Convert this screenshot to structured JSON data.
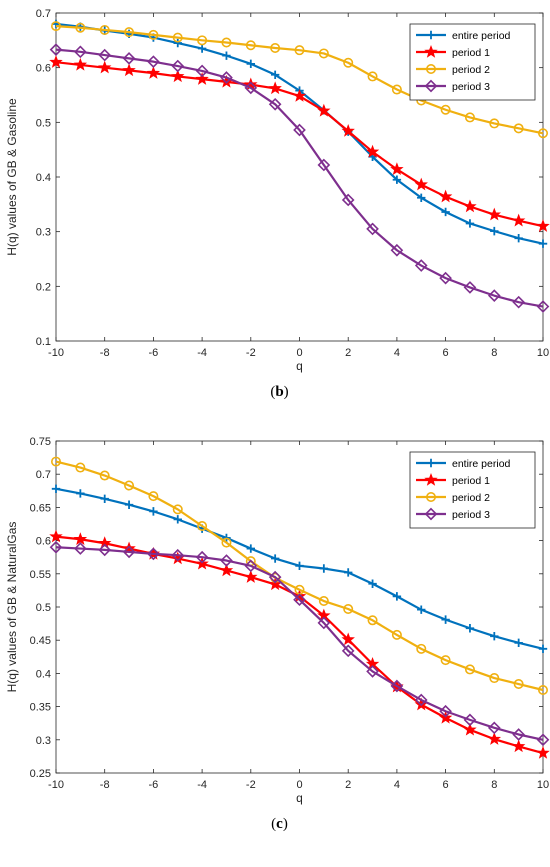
{
  "chart_data": [
    {
      "type": "line",
      "caption_open": "(",
      "caption": "b",
      "caption_close": ")",
      "xlabel": "q",
      "ylabel": "H(q) values of GB & Gasoline",
      "xlim": [
        -10,
        10
      ],
      "ylim": [
        0.1,
        0.7
      ],
      "xticks": [
        "-10",
        "-8",
        "-6",
        "-4",
        "-2",
        "0",
        "2",
        "4",
        "6",
        "8",
        "10"
      ],
      "yticks": [
        "0.1",
        "0.2",
        "0.3",
        "0.4",
        "0.5",
        "0.6",
        "0.7"
      ],
      "grid": false,
      "legend_position": "top-right",
      "x": [
        -10,
        -9,
        -8,
        -7,
        -6,
        -5,
        -4,
        -3,
        -2,
        -1,
        0,
        1,
        2,
        3,
        4,
        5,
        6,
        7,
        8,
        9,
        10
      ],
      "series": [
        {
          "name": "entire period",
          "color": "#0072BD",
          "marker": "plus",
          "values": [
            0.68,
            0.675,
            0.668,
            0.662,
            0.655,
            0.645,
            0.635,
            0.622,
            0.607,
            0.587,
            0.558,
            0.522,
            0.483,
            0.437,
            0.395,
            0.362,
            0.336,
            0.315,
            0.301,
            0.288,
            0.278
          ]
        },
        {
          "name": "period 1",
          "color": "#FF0000",
          "marker": "star",
          "values": [
            0.61,
            0.605,
            0.6,
            0.595,
            0.59,
            0.584,
            0.579,
            0.574,
            0.569,
            0.562,
            0.548,
            0.521,
            0.484,
            0.446,
            0.414,
            0.386,
            0.364,
            0.346,
            0.331,
            0.32,
            0.31
          ]
        },
        {
          "name": "period 2",
          "color": "#F0B010",
          "marker": "circle",
          "values": [
            0.676,
            0.673,
            0.669,
            0.665,
            0.66,
            0.655,
            0.65,
            0.646,
            0.641,
            0.636,
            0.632,
            0.626,
            0.609,
            0.584,
            0.56,
            0.54,
            0.523,
            0.509,
            0.498,
            0.489,
            0.48
          ]
        },
        {
          "name": "period 3",
          "color": "#7E2F8E",
          "marker": "diamond",
          "values": [
            0.633,
            0.629,
            0.623,
            0.617,
            0.611,
            0.603,
            0.594,
            0.582,
            0.563,
            0.533,
            0.486,
            0.422,
            0.358,
            0.305,
            0.266,
            0.238,
            0.215,
            0.198,
            0.183,
            0.171,
            0.163
          ]
        }
      ]
    },
    {
      "type": "line",
      "caption_open": "(",
      "caption": "c",
      "caption_close": ")",
      "xlabel": "q",
      "ylabel": "H(q) values of GB & NaturalGas",
      "xlim": [
        -10,
        10
      ],
      "ylim": [
        0.25,
        0.75
      ],
      "xticks": [
        "-10",
        "-8",
        "-6",
        "-4",
        "-2",
        "0",
        "2",
        "4",
        "6",
        "8",
        "10"
      ],
      "yticks": [
        "0.25",
        "0.3",
        "0.35",
        "0.4",
        "0.45",
        "0.5",
        "0.55",
        "0.6",
        "0.65",
        "0.7",
        "0.75"
      ],
      "grid": false,
      "legend_position": "top-right",
      "x": [
        -10,
        -9,
        -8,
        -7,
        -6,
        -5,
        -4,
        -3,
        -2,
        -1,
        0,
        1,
        2,
        3,
        4,
        5,
        6,
        7,
        8,
        9,
        10
      ],
      "series": [
        {
          "name": "entire period",
          "color": "#0072BD",
          "marker": "plus",
          "values": [
            0.678,
            0.671,
            0.663,
            0.654,
            0.644,
            0.632,
            0.618,
            0.604,
            0.588,
            0.573,
            0.562,
            0.558,
            0.552,
            0.535,
            0.516,
            0.496,
            0.481,
            0.468,
            0.456,
            0.446,
            0.437
          ]
        },
        {
          "name": "period 1",
          "color": "#FF0000",
          "marker": "star",
          "values": [
            0.606,
            0.602,
            0.596,
            0.588,
            0.58,
            0.573,
            0.565,
            0.555,
            0.545,
            0.534,
            0.516,
            0.487,
            0.451,
            0.414,
            0.38,
            0.353,
            0.333,
            0.315,
            0.301,
            0.29,
            0.28
          ]
        },
        {
          "name": "period 2",
          "color": "#F0B010",
          "marker": "circle",
          "values": [
            0.719,
            0.71,
            0.698,
            0.683,
            0.667,
            0.647,
            0.622,
            0.597,
            0.569,
            0.544,
            0.526,
            0.509,
            0.497,
            0.48,
            0.458,
            0.437,
            0.42,
            0.406,
            0.393,
            0.384,
            0.375
          ]
        },
        {
          "name": "period 3",
          "color": "#7E2F8E",
          "marker": "diamond",
          "values": [
            0.59,
            0.588,
            0.586,
            0.583,
            0.58,
            0.578,
            0.575,
            0.57,
            0.562,
            0.545,
            0.511,
            0.476,
            0.434,
            0.403,
            0.381,
            0.36,
            0.343,
            0.33,
            0.318,
            0.308,
            0.3
          ]
        }
      ]
    }
  ]
}
